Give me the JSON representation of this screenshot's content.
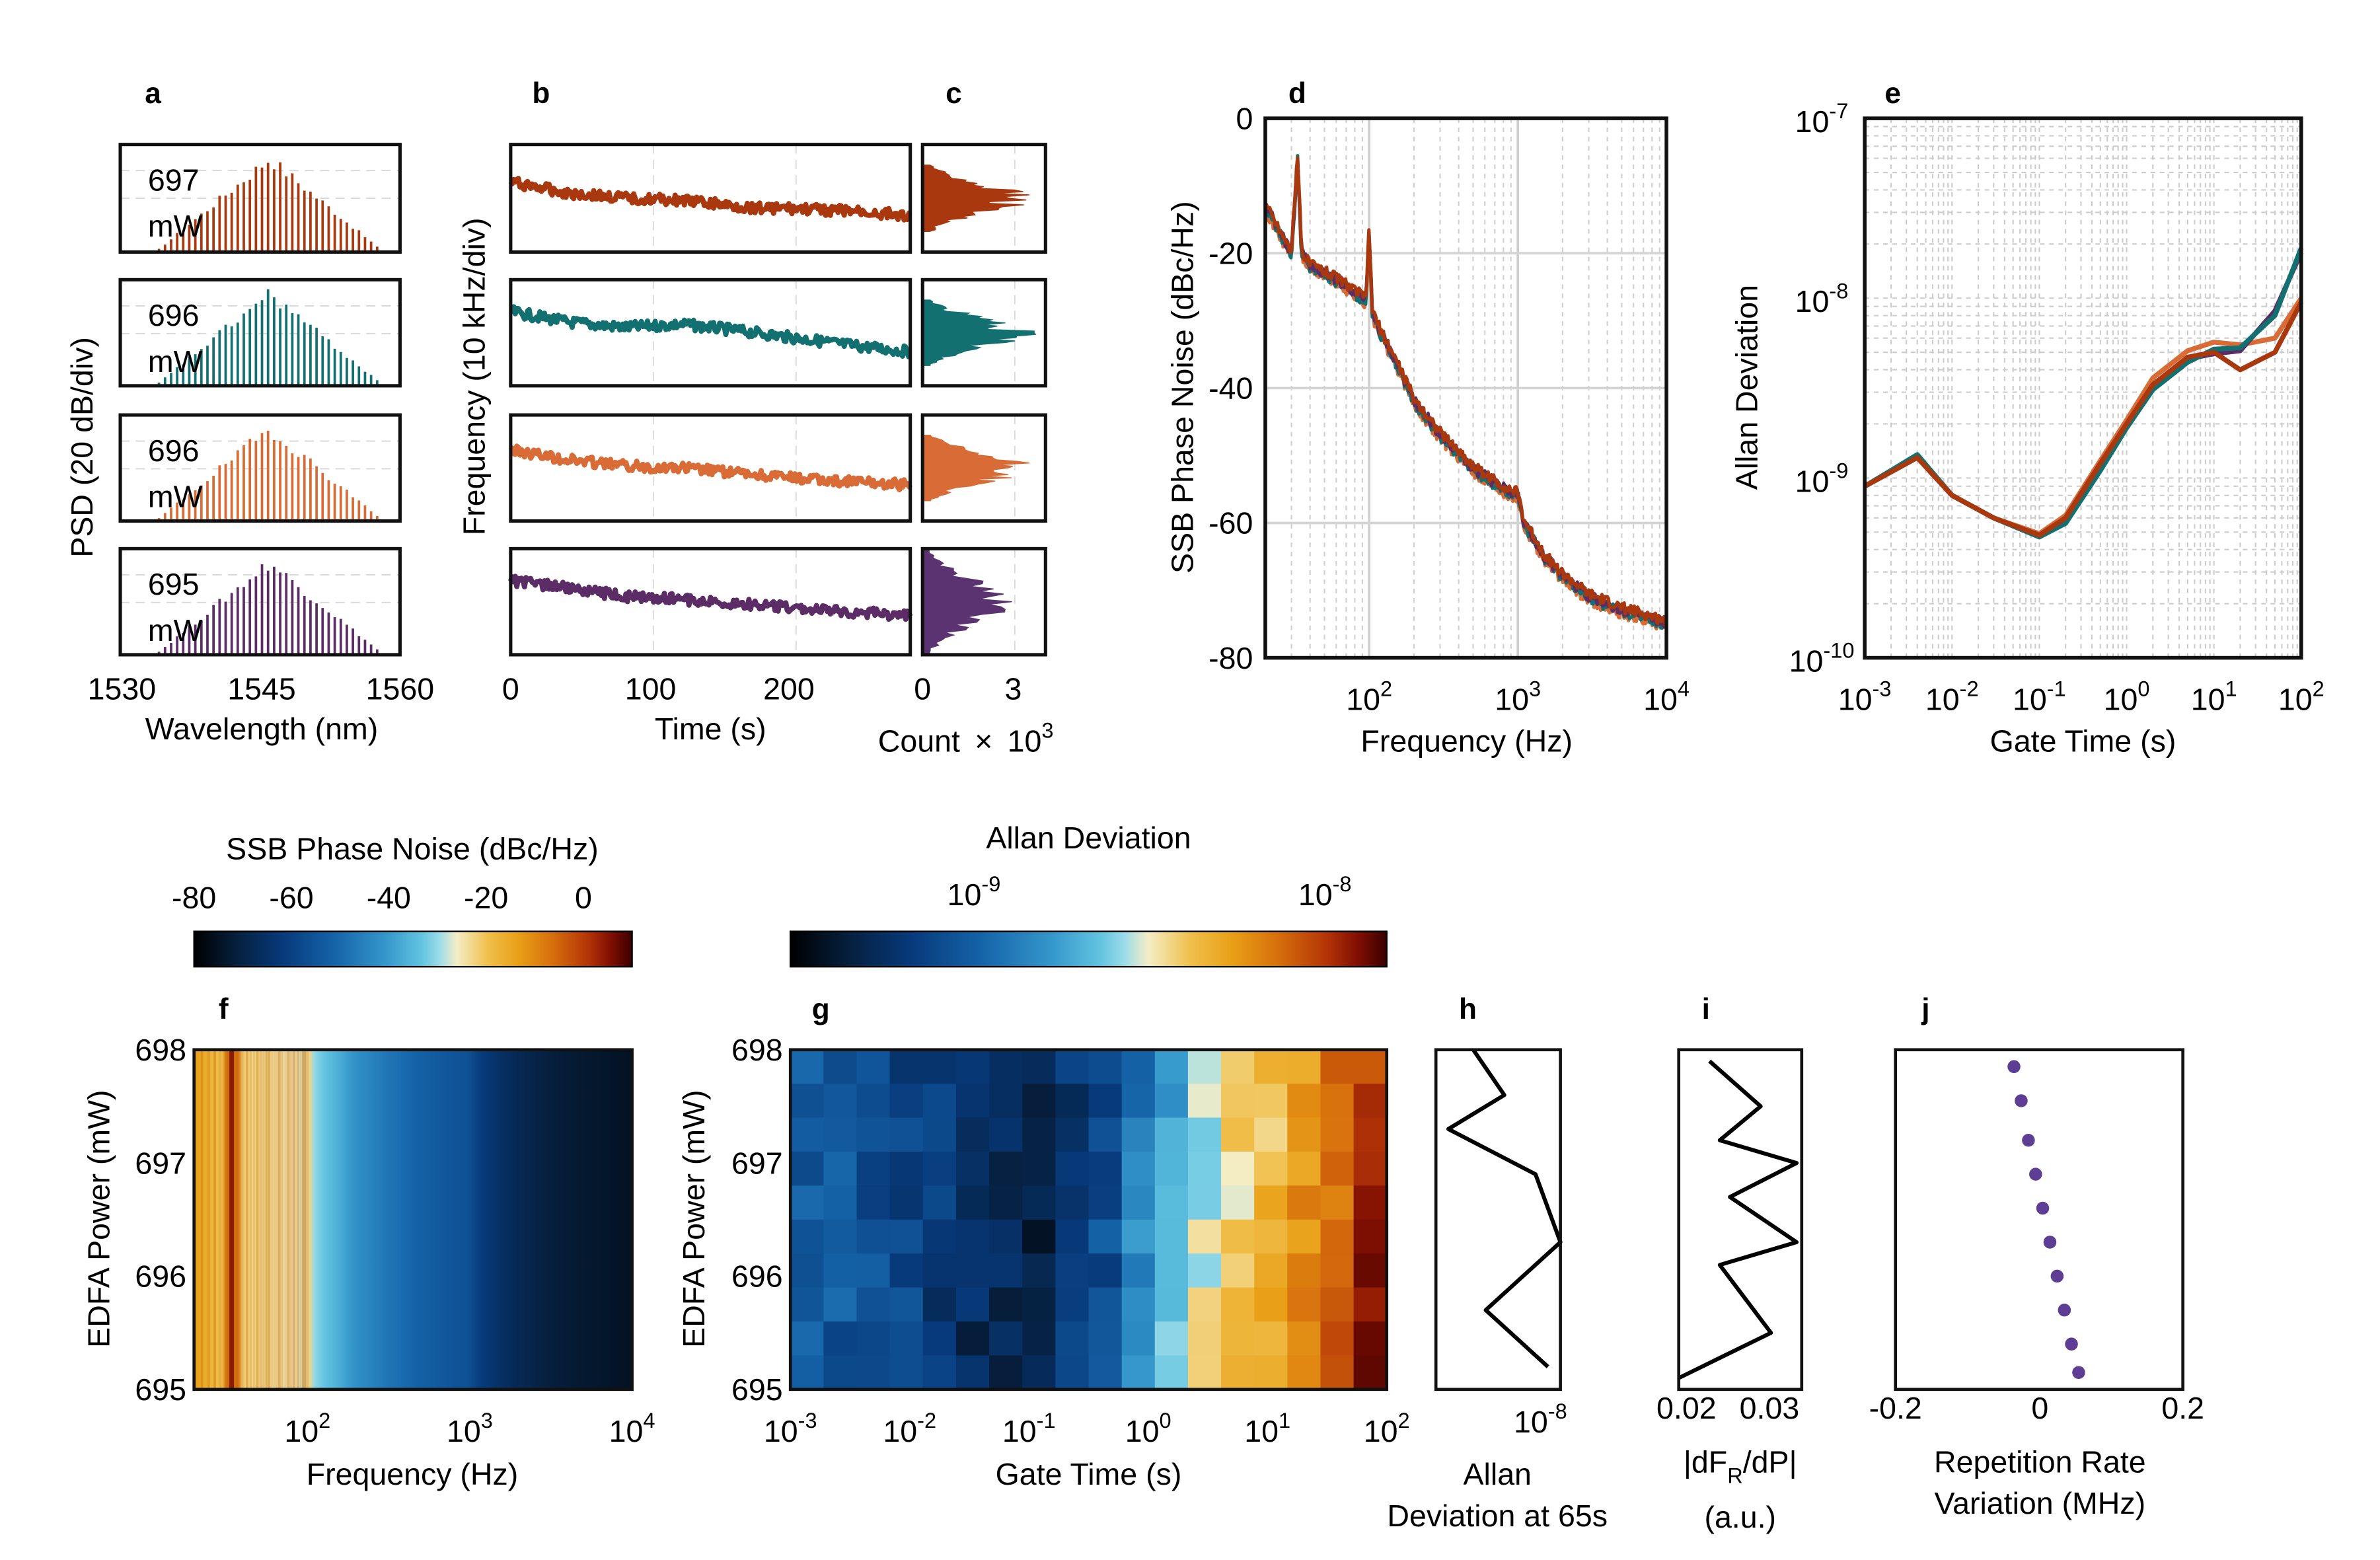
{
  "figure": {
    "background": "#ffffff"
  },
  "colors": {
    "c697": "#a9380e",
    "c696a": "#137071",
    "c696b": "#d96c36",
    "c695": "#5c2c67",
    "hist_purple": "#5b3370",
    "j_dots": "#5e3e94"
  },
  "chart_data": [
    {
      "id": "a",
      "type": "line",
      "panel_label": "a",
      "powers": [
        "697",
        "696",
        "696",
        "695"
      ],
      "unit": "mW",
      "xlabel": "Wavelength (nm)",
      "ylabel": "PSD (20 dB/div)",
      "xlim": [
        1530,
        1560
      ],
      "xticks": [
        1530,
        1545,
        1560
      ],
      "peak_center": 1546
    },
    {
      "id": "b",
      "type": "line",
      "panel_label": "b",
      "xlabel": "Time (s)",
      "ylabel": "Frequency (10 kHz/div)",
      "xlim": [
        0,
        280
      ],
      "xticks": [
        0,
        100,
        200
      ],
      "series": [
        {
          "name": "697 mW",
          "points": [
            [
              0,
              0.35
            ],
            [
              40,
              0.45
            ],
            [
              80,
              0.5
            ],
            [
              120,
              0.52
            ],
            [
              160,
              0.58
            ],
            [
              200,
              0.6
            ],
            [
              240,
              0.62
            ],
            [
              280,
              0.66
            ]
          ]
        },
        {
          "name": "696 mW",
          "points": [
            [
              0,
              0.3
            ],
            [
              40,
              0.4
            ],
            [
              80,
              0.45
            ],
            [
              120,
              0.42
            ],
            [
              160,
              0.48
            ],
            [
              200,
              0.55
            ],
            [
              240,
              0.62
            ],
            [
              280,
              0.68
            ]
          ]
        },
        {
          "name": "696 mW",
          "points": [
            [
              0,
              0.33
            ],
            [
              40,
              0.42
            ],
            [
              80,
              0.48
            ],
            [
              120,
              0.5
            ],
            [
              160,
              0.55
            ],
            [
              200,
              0.6
            ],
            [
              240,
              0.63
            ],
            [
              280,
              0.66
            ]
          ]
        },
        {
          "name": "695 mW",
          "points": [
            [
              0,
              0.3
            ],
            [
              40,
              0.37
            ],
            [
              80,
              0.45
            ],
            [
              120,
              0.48
            ],
            [
              160,
              0.52
            ],
            [
              200,
              0.56
            ],
            [
              240,
              0.6
            ],
            [
              280,
              0.63
            ]
          ]
        }
      ]
    },
    {
      "id": "c",
      "type": "histogram",
      "panel_label": "c",
      "xlabel_main": "Count",
      "xlabel_times": "×",
      "xlabel_base": "10",
      "xlabel_exp": "3",
      "xlim": [
        0,
        4
      ],
      "xticks": [
        0,
        3
      ]
    },
    {
      "id": "d",
      "type": "line",
      "panel_label": "d",
      "xlabel": "Frequency (Hz)",
      "ylabel": "SSB Phase Noise (dBc/Hz)",
      "xscale": "log",
      "xlim": [
        20,
        10000
      ],
      "ylim": [
        -80,
        0
      ],
      "yticks": [
        0,
        -20,
        -40,
        -60,
        -80
      ],
      "xtick_base": "10",
      "xtick_exps": [
        "2",
        "3",
        "4"
      ],
      "curve": [
        [
          20,
          -13
        ],
        [
          25,
          -17
        ],
        [
          30,
          -20
        ],
        [
          33,
          -6
        ],
        [
          35,
          -20
        ],
        [
          40,
          -22
        ],
        [
          50,
          -23
        ],
        [
          60,
          -24
        ],
        [
          70,
          -25
        ],
        [
          80,
          -26
        ],
        [
          95,
          -27
        ],
        [
          100,
          -17
        ],
        [
          105,
          -29
        ],
        [
          120,
          -32
        ],
        [
          150,
          -36
        ],
        [
          200,
          -42
        ],
        [
          300,
          -47
        ],
        [
          500,
          -52
        ],
        [
          800,
          -55
        ],
        [
          1000,
          -56
        ],
        [
          1100,
          -60
        ],
        [
          1500,
          -65
        ],
        [
          2000,
          -68
        ],
        [
          3000,
          -71
        ],
        [
          5000,
          -73
        ],
        [
          10000,
          -75
        ]
      ]
    },
    {
      "id": "e",
      "type": "line",
      "panel_label": "e",
      "xlabel": "Gate Time (s)",
      "ylabel": "Allan Deviation",
      "xscale": "log",
      "yscale": "log",
      "xlim": [
        0.001,
        100
      ],
      "ylim": [
        1e-10,
        1e-07
      ],
      "xtick_base": "10",
      "xtick_exps": [
        "-3",
        "-2",
        "-1",
        "0",
        "1",
        "2"
      ],
      "ytick_base": "10",
      "ytick_exps": [
        "-7",
        "-8",
        "-9",
        "-10"
      ],
      "series": [
        {
          "name": "697 mW",
          "points": [
            [
              0.001,
              9e-10
            ],
            [
              0.004,
              1.3e-09
            ],
            [
              0.01,
              8e-10
            ],
            [
              0.03,
              6e-10
            ],
            [
              0.1,
              4.8e-10
            ],
            [
              0.2,
              6e-10
            ],
            [
              0.5,
              1.2e-09
            ],
            [
              1,
              2e-09
            ],
            [
              2,
              3.3e-09
            ],
            [
              5,
              4.7e-09
            ],
            [
              10,
              5e-09
            ],
            [
              20,
              4e-09
            ],
            [
              50,
              5e-09
            ],
            [
              100,
              9.5e-09
            ]
          ]
        },
        {
          "name": "696 mW",
          "points": [
            [
              0.001,
              9e-10
            ],
            [
              0.004,
              1.35e-09
            ],
            [
              0.01,
              8e-10
            ],
            [
              0.03,
              6e-10
            ],
            [
              0.1,
              4.7e-10
            ],
            [
              0.2,
              5.6e-10
            ],
            [
              0.5,
              1.1e-09
            ],
            [
              1,
              1.9e-09
            ],
            [
              2,
              3.1e-09
            ],
            [
              5,
              4.4e-09
            ],
            [
              10,
              5.2e-09
            ],
            [
              20,
              5.3e-09
            ],
            [
              50,
              8e-09
            ],
            [
              100,
              1.9e-08
            ]
          ]
        },
        {
          "name": "696 mW",
          "points": [
            [
              0.001,
              9e-10
            ],
            [
              0.004,
              1.3e-09
            ],
            [
              0.01,
              8e-10
            ],
            [
              0.03,
              6e-10
            ],
            [
              0.1,
              4.9e-10
            ],
            [
              0.2,
              6.2e-10
            ],
            [
              0.5,
              1.25e-09
            ],
            [
              1,
              2.1e-09
            ],
            [
              2,
              3.6e-09
            ],
            [
              5,
              5.1e-09
            ],
            [
              10,
              5.7e-09
            ],
            [
              20,
              5.5e-09
            ],
            [
              50,
              6e-09
            ],
            [
              100,
              1e-08
            ]
          ]
        },
        {
          "name": "695 mW",
          "points": [
            [
              0.001,
              9e-10
            ],
            [
              0.004,
              1.3e-09
            ],
            [
              0.01,
              8e-10
            ],
            [
              0.03,
              6e-10
            ],
            [
              0.1,
              4.8e-10
            ],
            [
              0.2,
              6e-10
            ],
            [
              0.5,
              1.2e-09
            ],
            [
              1,
              2e-09
            ],
            [
              2,
              3.3e-09
            ],
            [
              5,
              4.6e-09
            ],
            [
              10,
              4.9e-09
            ],
            [
              20,
              5.1e-09
            ],
            [
              50,
              8.5e-09
            ],
            [
              100,
              1.8e-08
            ]
          ]
        }
      ]
    },
    {
      "id": "cbar1",
      "type": "colorbar",
      "title": "SSB Phase Noise (dBc/Hz)",
      "range": [
        -80,
        10
      ],
      "ticks": [
        "-80",
        "-60",
        "-40",
        "-20",
        "0"
      ],
      "tick_values": [
        -80,
        -60,
        -40,
        -20,
        0
      ]
    },
    {
      "id": "cbar2",
      "type": "colorbar",
      "title": "Allan Deviation",
      "log": true,
      "range": [
        3e-10,
        1.5e-08
      ],
      "tick_base": "10",
      "tick_exps": [
        "-9",
        "-8"
      ],
      "tick_values": [
        1e-09,
        1e-08
      ]
    },
    {
      "id": "f",
      "type": "heatmap",
      "panel_label": "f",
      "xlabel": "Frequency (Hz)",
      "ylabel": "EDFA Power (mW)",
      "xscale": "log",
      "xlim": [
        20,
        10000
      ],
      "ylim": [
        695,
        698
      ],
      "yticks": [
        "698",
        "697",
        "696",
        "695"
      ],
      "xtick_base": "10",
      "xtick_exps": [
        "2",
        "3",
        "4"
      ]
    },
    {
      "id": "g",
      "type": "heatmap",
      "panel_label": "g",
      "xlabel": "Gate Time (s)",
      "ylabel": "EDFA Power (mW)",
      "xscale": "log",
      "xlim": [
        0.001,
        100
      ],
      "ylim": [
        695,
        698
      ],
      "yticks": [
        "698",
        "697",
        "696",
        "695"
      ],
      "xtick_base": "10",
      "xtick_exps": [
        "-3",
        "-2",
        "-1",
        "0",
        "1",
        "2"
      ],
      "column_base": [
        1e-09,
        9.5e-10,
        8.5e-10,
        7.5e-10,
        6.5e-10,
        5.5e-10,
        5e-10,
        4.8e-10,
        6.5e-10,
        8.5e-10,
        1.3e-09,
        1.9e-09,
        2.6e-09,
        3.3e-09,
        4.2e-09,
        5.2e-09,
        7e-09,
        1e-08
      ]
    },
    {
      "id": "h",
      "type": "line",
      "panel_label": "h",
      "xlabel_line1": "Allan",
      "xlabel_line2": "Deviation at 65s",
      "xtick_base": "10",
      "xtick_exp": "-8",
      "ylim": [
        695,
        698
      ],
      "curve": [
        [
          0.3,
          698
        ],
        [
          0.55,
          697.6
        ],
        [
          0.1,
          697.3
        ],
        [
          0.8,
          696.9
        ],
        [
          1.0,
          696.3
        ],
        [
          0.4,
          695.7
        ],
        [
          0.9,
          695.2
        ]
      ]
    },
    {
      "id": "i",
      "type": "line",
      "panel_label": "i",
      "xlabel_line1_pre": "|dF",
      "xlabel_line1_sub": "R",
      "xlabel_line1_post": "/dP|",
      "xlabel_line2": "(a.u.)",
      "xlim": [
        0.02,
        0.032
      ],
      "xticks": [
        "0.02",
        "0.03"
      ],
      "ylim": [
        695,
        698
      ],
      "curve": [
        [
          0.023,
          697.9
        ],
        [
          0.028,
          697.5
        ],
        [
          0.024,
          697.2
        ],
        [
          0.0315,
          697
        ],
        [
          0.025,
          696.7
        ],
        [
          0.0315,
          696.3
        ],
        [
          0.024,
          696.1
        ],
        [
          0.029,
          695.5
        ],
        [
          0.0245,
          695.3
        ],
        [
          0.02,
          695.1
        ]
      ]
    },
    {
      "id": "j",
      "type": "scatter",
      "panel_label": "j",
      "xlabel_line1": "Repetition Rate",
      "xlabel_line2": "Variation (MHz)",
      "xlim": [
        -0.2,
        0.2
      ],
      "xticks": [
        "-0.2",
        "0",
        "0.2"
      ],
      "ylim": [
        695,
        698
      ],
      "points": [
        [
          -0.035,
          697.85
        ],
        [
          -0.025,
          697.55
        ],
        [
          -0.015,
          697.2
        ],
        [
          -0.005,
          696.9
        ],
        [
          0.005,
          696.6
        ],
        [
          0.015,
          696.3
        ],
        [
          0.025,
          696.0
        ],
        [
          0.035,
          695.7
        ],
        [
          0.045,
          695.4
        ],
        [
          0.055,
          695.15
        ]
      ]
    }
  ]
}
